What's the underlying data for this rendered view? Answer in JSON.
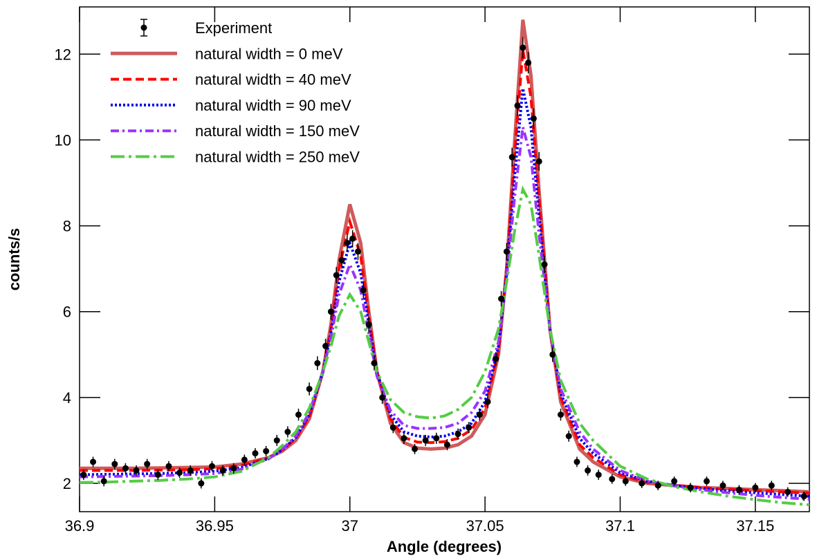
{
  "chart_data": {
    "type": "line",
    "xlabel": "Angle (degrees)",
    "ylabel": "counts/s",
    "xlim": [
      36.9,
      37.17
    ],
    "ylim": [
      1.34,
      13.1
    ],
    "xticks": [
      36.9,
      36.95,
      37,
      37.05,
      37.1,
      37.15
    ],
    "yticks": [
      2,
      4,
      6,
      8,
      10,
      12
    ],
    "legend": "top-left",
    "x": [
      36.9,
      36.91,
      36.92,
      36.93,
      36.94,
      36.95,
      36.96,
      36.97,
      36.975,
      36.98,
      36.985,
      36.99,
      36.993,
      36.996,
      37.0,
      37.004,
      37.007,
      37.01,
      37.015,
      37.02,
      37.025,
      37.03,
      37.035,
      37.04,
      37.045,
      37.05,
      37.055,
      37.058,
      37.061,
      37.064,
      37.067,
      37.07,
      37.074,
      37.078,
      37.085,
      37.09,
      37.1,
      37.11,
      37.12,
      37.13,
      37.14,
      37.15,
      37.16,
      37.17
    ],
    "series": [
      {
        "name": "Experiment",
        "color": "#000000",
        "style": "points",
        "x": [
          36.9015,
          36.905,
          36.909,
          36.913,
          36.917,
          36.921,
          36.925,
          36.929,
          36.933,
          36.937,
          36.941,
          36.945,
          36.949,
          36.953,
          36.957,
          36.961,
          36.965,
          36.969,
          36.973,
          36.977,
          36.981,
          36.985,
          36.988,
          36.991,
          36.993,
          36.995,
          36.997,
          36.999,
          37.001,
          37.003,
          37.005,
          37.007,
          37.009,
          37.012,
          37.016,
          37.02,
          37.024,
          37.028,
          37.032,
          37.036,
          37.04,
          37.044,
          37.048,
          37.051,
          37.054,
          37.056,
          37.058,
          37.06,
          37.062,
          37.064,
          37.066,
          37.068,
          37.07,
          37.072,
          37.075,
          37.078,
          37.081,
          37.084,
          37.088,
          37.092,
          37.097,
          37.102,
          37.108,
          37.114,
          37.12,
          37.126,
          37.132,
          37.138,
          37.144,
          37.15,
          37.156,
          37.162,
          37.168
        ],
        "values": [
          2.2,
          2.5,
          2.05,
          2.45,
          2.35,
          2.3,
          2.45,
          2.2,
          2.4,
          2.25,
          2.3,
          2.0,
          2.4,
          2.3,
          2.35,
          2.55,
          2.7,
          2.75,
          3.0,
          3.2,
          3.6,
          4.2,
          4.8,
          5.2,
          6.0,
          6.85,
          7.2,
          7.6,
          7.7,
          7.4,
          6.5,
          5.7,
          4.8,
          4.0,
          3.3,
          3.05,
          2.8,
          3.0,
          3.05,
          2.9,
          3.15,
          3.3,
          3.6,
          3.9,
          4.9,
          6.3,
          7.4,
          9.6,
          10.8,
          12.15,
          11.8,
          10.5,
          9.5,
          7.1,
          5.0,
          3.6,
          3.1,
          2.5,
          2.3,
          2.2,
          2.1,
          2.05,
          2.0,
          1.95,
          2.05,
          1.9,
          2.05,
          1.95,
          1.85,
          1.9,
          1.95,
          1.8,
          1.7
        ],
        "errors": [
          0.12,
          0.12,
          0.12,
          0.12,
          0.12,
          0.12,
          0.12,
          0.12,
          0.12,
          0.12,
          0.12,
          0.12,
          0.12,
          0.12,
          0.12,
          0.12,
          0.12,
          0.12,
          0.13,
          0.13,
          0.14,
          0.15,
          0.16,
          0.17,
          0.18,
          0.19,
          0.2,
          0.2,
          0.2,
          0.2,
          0.19,
          0.18,
          0.17,
          0.15,
          0.13,
          0.13,
          0.12,
          0.13,
          0.13,
          0.13,
          0.13,
          0.13,
          0.14,
          0.15,
          0.16,
          0.18,
          0.2,
          0.22,
          0.24,
          0.25,
          0.25,
          0.24,
          0.22,
          0.2,
          0.17,
          0.14,
          0.13,
          0.12,
          0.12,
          0.12,
          0.11,
          0.11,
          0.11,
          0.11,
          0.11,
          0.11,
          0.11,
          0.11,
          0.11,
          0.11,
          0.11,
          0.11,
          0.11
        ]
      },
      {
        "name": "natural width = 0 meV",
        "color": "#cd5c5c",
        "dash": "solid",
        "values": [
          2.35,
          2.35,
          2.35,
          2.36,
          2.37,
          2.38,
          2.45,
          2.6,
          2.75,
          3.0,
          3.5,
          4.6,
          5.7,
          7.2,
          8.5,
          7.6,
          6.0,
          4.6,
          3.4,
          2.95,
          2.82,
          2.8,
          2.82,
          2.9,
          3.1,
          3.6,
          5.0,
          7.0,
          10.0,
          12.8,
          11.5,
          8.8,
          5.6,
          3.9,
          2.8,
          2.5,
          2.15,
          2.0,
          1.95,
          1.9,
          1.88,
          1.85,
          1.83,
          1.8
        ]
      },
      {
        "name": "natural width = 40 meV",
        "color": "#ff0000",
        "dash": "dashed",
        "values": [
          2.3,
          2.3,
          2.3,
          2.31,
          2.32,
          2.34,
          2.42,
          2.6,
          2.78,
          3.05,
          3.55,
          4.6,
          5.6,
          7.0,
          8.1,
          7.3,
          5.9,
          4.6,
          3.5,
          3.07,
          2.96,
          2.95,
          2.97,
          3.05,
          3.25,
          3.75,
          5.1,
          7.0,
          9.7,
          12.1,
          11.0,
          8.6,
          5.6,
          4.0,
          2.9,
          2.6,
          2.2,
          2.02,
          1.95,
          1.9,
          1.86,
          1.83,
          1.8,
          1.77
        ]
      },
      {
        "name": "natural width = 90 meV",
        "color": "#0000ee",
        "dash": "dotted",
        "values": [
          2.2,
          2.21,
          2.22,
          2.23,
          2.25,
          2.28,
          2.37,
          2.58,
          2.78,
          3.07,
          3.6,
          4.6,
          5.5,
          6.7,
          7.6,
          6.9,
          5.7,
          4.6,
          3.6,
          3.2,
          3.1,
          3.08,
          3.1,
          3.2,
          3.4,
          3.9,
          5.2,
          6.9,
          9.2,
          11.2,
          10.3,
          8.2,
          5.6,
          4.1,
          3.05,
          2.7,
          2.25,
          2.05,
          1.95,
          1.88,
          1.82,
          1.78,
          1.74,
          1.7
        ]
      },
      {
        "name": "natural width = 150 meV",
        "color": "#9933ff",
        "dash": "dashdot",
        "values": [
          2.15,
          2.16,
          2.17,
          2.18,
          2.2,
          2.23,
          2.33,
          2.57,
          2.8,
          3.1,
          3.65,
          4.6,
          5.4,
          6.4,
          7.1,
          6.5,
          5.5,
          4.5,
          3.7,
          3.35,
          3.28,
          3.28,
          3.3,
          3.4,
          3.65,
          4.15,
          5.3,
          6.8,
          8.7,
          10.3,
          9.6,
          7.8,
          5.6,
          4.2,
          3.2,
          2.8,
          2.3,
          2.05,
          1.94,
          1.85,
          1.78,
          1.72,
          1.67,
          1.63
        ]
      },
      {
        "name": "natural width = 250 meV",
        "color": "#55cc44",
        "dash": "longdashdot",
        "values": [
          2.02,
          2.03,
          2.05,
          2.07,
          2.1,
          2.15,
          2.28,
          2.6,
          2.88,
          3.2,
          3.75,
          4.6,
          5.2,
          5.9,
          6.4,
          6.0,
          5.3,
          4.6,
          3.95,
          3.65,
          3.55,
          3.52,
          3.57,
          3.72,
          4.0,
          4.6,
          5.6,
          6.7,
          7.9,
          8.85,
          8.5,
          7.3,
          5.6,
          4.4,
          3.4,
          3.0,
          2.4,
          2.1,
          1.92,
          1.8,
          1.7,
          1.62,
          1.55,
          1.5
        ]
      }
    ]
  }
}
